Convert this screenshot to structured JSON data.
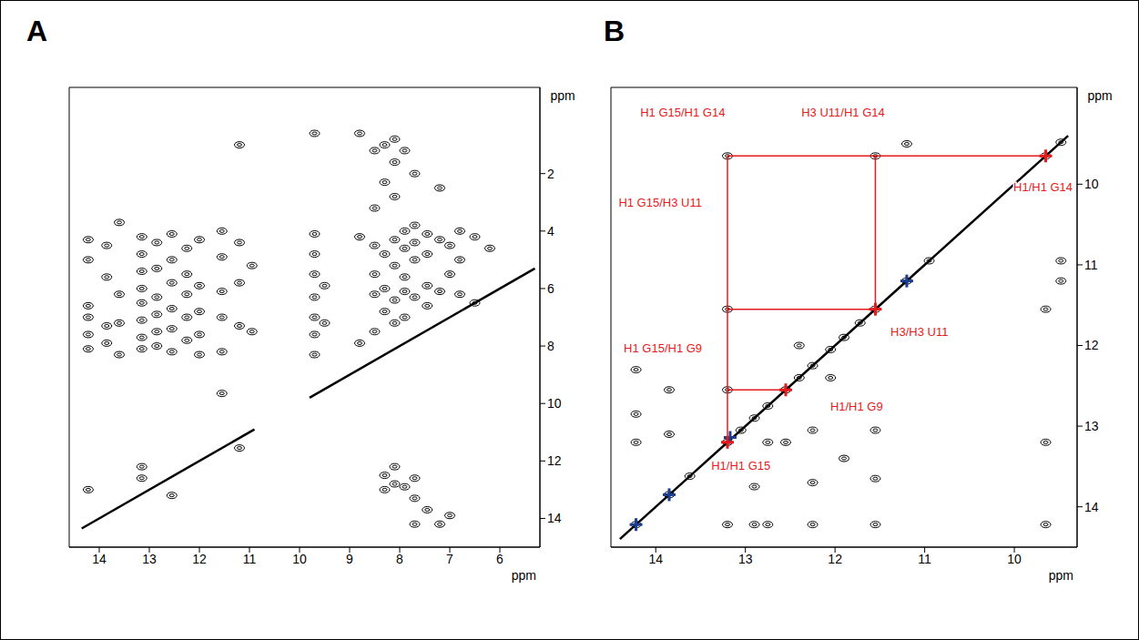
{
  "chart_data": [
    {
      "type": "scatter",
      "title": "A",
      "x_label": "ppm",
      "y_label": "ppm",
      "xlim": [
        5.2,
        14.6
      ],
      "xticks": [
        6,
        7,
        8,
        9,
        10,
        11,
        12,
        13,
        14
      ],
      "ylim": [
        -1,
        15
      ],
      "yticks": [
        2,
        4,
        6,
        8,
        10,
        12,
        14
      ],
      "series": [
        {
          "type": "line",
          "color": "#000000",
          "x": [
            14.35,
            10.9
          ],
          "values": [
            14.35,
            10.9
          ]
        },
        {
          "type": "line",
          "color": "#000000",
          "x": [
            9.8,
            5.3
          ],
          "values": [
            9.8,
            5.3
          ]
        },
        {
          "type": "scatter",
          "color": "#000000",
          "marker": "ellipse",
          "x": [
            14.22,
            14.22,
            14.22,
            14.22,
            14.22,
            14.22,
            14.22,
            13.85,
            13.85,
            13.85,
            13.85,
            13.6,
            13.6,
            13.6,
            13.6,
            13.15,
            13.15,
            13.15,
            13.15,
            13.15,
            13.15,
            13.15,
            13.15,
            13.15,
            13.15,
            12.85,
            12.85,
            12.85,
            12.85,
            12.85,
            12.85,
            12.55,
            12.55,
            12.55,
            12.55,
            12.55,
            12.55,
            12.55,
            12.25,
            12.25,
            12.25,
            12.25,
            12.25,
            12,
            12,
            12,
            12,
            12,
            11.55,
            11.55,
            11.55,
            11.55,
            11.55,
            11.55,
            11.2,
            11.2,
            11.2,
            11.2,
            11.2,
            10.95,
            10.95,
            9.7,
            9.7,
            9.7,
            9.7,
            9.7,
            9.7,
            9.7,
            9.7,
            9.5,
            9.5,
            8.8,
            8.8,
            8.8,
            8.5,
            8.5,
            8.5,
            8.5,
            8.5,
            8.5,
            8.3,
            8.3,
            8.3,
            8.3,
            8.3,
            8.3,
            8.3,
            8.1,
            8.1,
            8.1,
            8.1,
            8.1,
            8.1,
            8.1,
            8.1,
            8.1,
            7.9,
            7.9,
            7.9,
            7.9,
            7.9,
            7.9,
            7.9,
            7.7,
            7.7,
            7.7,
            7.7,
            7.7,
            7.7,
            7.7,
            7.7,
            7.45,
            7.45,
            7.45,
            7.45,
            7.45,
            7.2,
            7.2,
            7.2,
            7.2,
            7,
            7,
            7,
            6.8,
            6.8,
            6.8,
            6.5,
            6.5,
            6.2
          ],
          "values": [
            4.3,
            5.0,
            6.6,
            7.0,
            7.6,
            8.1,
            13.0,
            4.5,
            5.6,
            7.3,
            7.9,
            3.7,
            6.2,
            7.2,
            8.3,
            4.2,
            4.8,
            5.4,
            6.0,
            6.5,
            7.1,
            7.7,
            8.1,
            12.2,
            12.6,
            4.4,
            5.3,
            6.3,
            6.9,
            7.5,
            8.0,
            4.1,
            5.0,
            5.8,
            6.7,
            7.4,
            8.2,
            13.2,
            4.6,
            5.5,
            6.2,
            7.0,
            7.8,
            4.3,
            5.9,
            6.8,
            7.6,
            8.3,
            4.0,
            4.9,
            6.1,
            7.0,
            8.2,
            9.65,
            1.0,
            4.4,
            5.8,
            7.3,
            11.55,
            5.2,
            7.5,
            0.6,
            4.1,
            4.8,
            5.5,
            6.3,
            7.0,
            7.6,
            8.3,
            5.9,
            7.2,
            0.6,
            4.2,
            7.9,
            1.2,
            3.2,
            4.5,
            5.5,
            6.2,
            7.5,
            1.0,
            2.3,
            4.8,
            6.0,
            6.8,
            12.5,
            13.0,
            0.8,
            1.6,
            2.8,
            4.3,
            5.2,
            6.4,
            7.2,
            12.2,
            12.8,
            1.2,
            4.0,
            4.6,
            5.6,
            6.1,
            7.0,
            12.9,
            2.0,
            3.8,
            4.4,
            5.0,
            6.3,
            12.6,
            13.3,
            14.2,
            4.1,
            4.8,
            5.9,
            6.6,
            13.7,
            2.5,
            4.3,
            6.1,
            14.2,
            4.5,
            5.5,
            13.9,
            4.0,
            5.0,
            6.2,
            4.2,
            6.5,
            4.6
          ]
        }
      ]
    },
    {
      "type": "scatter",
      "title": "B",
      "x_label": "ppm",
      "y_label": "ppm",
      "xlim": [
        9.3,
        14.5
      ],
      "xticks": [
        10,
        11,
        12,
        13,
        14
      ],
      "ylim": [
        8.8,
        14.5
      ],
      "yticks": [
        10,
        11,
        12,
        13,
        14
      ],
      "series": [
        {
          "type": "line",
          "color": "#000000",
          "x": [
            14.4,
            9.4
          ],
          "values": [
            14.4,
            9.4
          ]
        },
        {
          "type": "scatter",
          "color": "#000000",
          "marker": "ellipse",
          "x": [
            14.22,
            13.85,
            13.62,
            13.2,
            13.05,
            12.9,
            12.75,
            12.55,
            12.4,
            12.25,
            12.05,
            11.9,
            11.72,
            11.55,
            11.2,
            10.95,
            9.65,
            9.48,
            13.2,
            11.55,
            13.2,
            13.2,
            14.22,
            14.22,
            14.22,
            13.85,
            13.85,
            12.55,
            12.25,
            12.25,
            11.55,
            11.55,
            12.9,
            12.75,
            13.2,
            12.9,
            12.75,
            12.25,
            11.55,
            9.65,
            9.65,
            9.65,
            9.48,
            9.48,
            11.2,
            12.4,
            12.05,
            11.9
          ],
          "values": [
            14.22,
            13.85,
            13.62,
            13.2,
            13.05,
            12.9,
            12.75,
            12.55,
            12.4,
            12.25,
            12.05,
            11.9,
            11.72,
            11.55,
            11.2,
            10.95,
            9.65,
            9.48,
            9.65,
            9.65,
            11.55,
            12.55,
            12.3,
            12.85,
            13.2,
            12.55,
            13.1,
            13.2,
            13.05,
            13.7,
            13.05,
            13.65,
            13.75,
            13.2,
            14.22,
            14.22,
            14.22,
            14.22,
            14.22,
            14.22,
            13.2,
            11.55,
            10.95,
            11.2,
            9.5,
            12.0,
            12.4,
            13.4
          ]
        },
        {
          "type": "line",
          "color": "#e41a1c",
          "x": [
            13.2,
            9.65
          ],
          "values": [
            9.65,
            9.65
          ]
        },
        {
          "type": "line",
          "color": "#e41a1c",
          "x": [
            11.55,
            11.55
          ],
          "values": [
            9.65,
            11.55
          ]
        },
        {
          "type": "line",
          "color": "#e41a1c",
          "x": [
            13.2,
            13.2
          ],
          "values": [
            9.65,
            13.2
          ]
        },
        {
          "type": "line",
          "color": "#e41a1c",
          "x": [
            13.2,
            11.55
          ],
          "values": [
            11.55,
            11.55
          ]
        },
        {
          "type": "line",
          "color": "#e41a1c",
          "x": [
            13.2,
            12.55
          ],
          "values": [
            12.55,
            12.55
          ]
        },
        {
          "type": "scatter",
          "color": "#1a3d8f",
          "marker": "cross",
          "x": [
            14.22,
            13.85,
            13.17,
            11.2
          ],
          "values": [
            14.22,
            13.85,
            13.14,
            11.2
          ]
        },
        {
          "type": "scatter",
          "color": "#e41a1c",
          "marker": "cross",
          "x": [
            13.2,
            12.55,
            11.55,
            9.65
          ],
          "values": [
            13.2,
            12.55,
            11.55,
            9.65
          ]
        }
      ],
      "annotations": [
        {
          "text": "H1 G15/H1 G14",
          "x": 13.7,
          "y": 9.12
        },
        {
          "text": "H3 U11/H1 G14",
          "x": 11.91,
          "y": 9.12
        },
        {
          "text": "H1/H1 G14",
          "x": 9.68,
          "y": 10.05
        },
        {
          "text": "H1 G15/H3 U11",
          "x": 13.95,
          "y": 10.24
        },
        {
          "text": "H3/H3 U11",
          "x": 11.06,
          "y": 11.84
        },
        {
          "text": "H1 G15/H1 G9",
          "x": 13.92,
          "y": 12.05
        },
        {
          "text": "H1/H1 G9",
          "x": 11.76,
          "y": 12.77
        },
        {
          "text": "H1/H1 G15",
          "x": 13.05,
          "y": 13.5
        }
      ]
    }
  ]
}
